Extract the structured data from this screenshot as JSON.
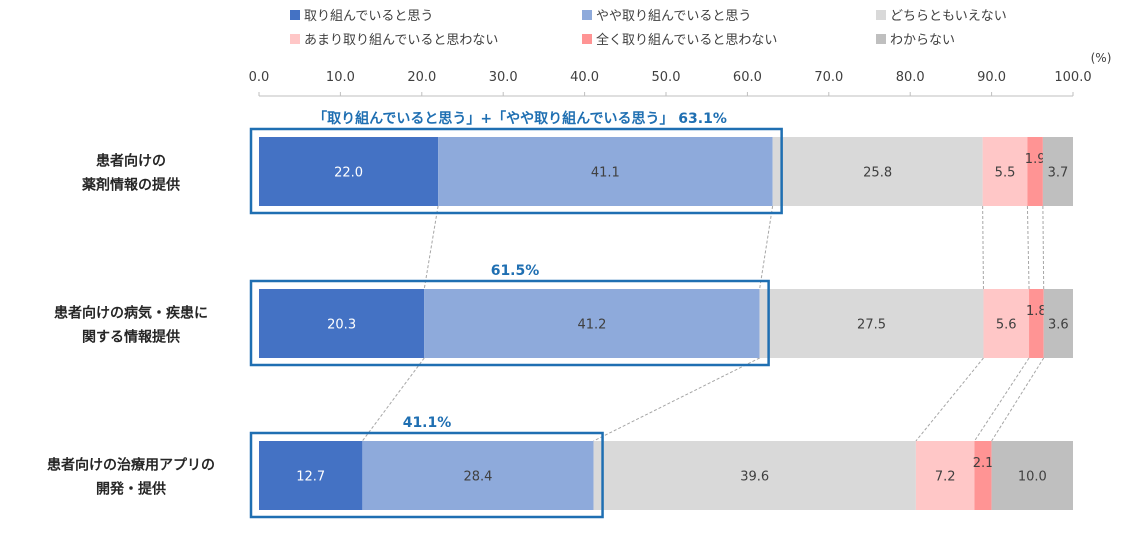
{
  "chart_data": {
    "type": "bar",
    "orientation": "horizontal",
    "stacked": true,
    "unit_label": "(%)",
    "x_ticks": [
      "0.0",
      "10.0",
      "20.0",
      "30.0",
      "40.0",
      "50.0",
      "60.0",
      "70.0",
      "80.0",
      "90.0",
      "100.0"
    ],
    "xlim": [
      0,
      100
    ],
    "legend_position": "top",
    "categories": [
      [
        "患者向けの",
        "薬剤情報の提供"
      ],
      [
        "患者向けの病気・疾患に",
        "関する情報提供"
      ],
      [
        "患者向けの治療用アプリの",
        "開発・提供"
      ]
    ],
    "series": [
      {
        "name": "取り組んでいると思う",
        "color": "#4472c4",
        "label_color": "#ffffff",
        "values": [
          22.0,
          20.3,
          12.7
        ]
      },
      {
        "name": "やや取り組んでいると思う",
        "color": "#8eaadb",
        "label_color": "#404040",
        "values": [
          41.1,
          41.2,
          28.4
        ]
      },
      {
        "name": "どちらともいえない",
        "color": "#d9d9d9",
        "label_color": "#404040",
        "values": [
          25.8,
          27.5,
          39.6
        ]
      },
      {
        "name": "あまり取り組んでいると思わない",
        "color": "#ffc7c7",
        "label_color": "#404040",
        "values": [
          5.5,
          5.6,
          7.2
        ]
      },
      {
        "name": "全く取り組んでいると思わない",
        "color": "#ff9494",
        "label_color": "#404040",
        "values": [
          1.9,
          1.8,
          2.1
        ]
      },
      {
        "name": "わからない",
        "color": "#bfbfbf",
        "label_color": "#404040",
        "values": [
          3.7,
          3.6,
          10.0
        ]
      }
    ],
    "value_labels": [
      [
        "22.0",
        "41.1",
        "25.8",
        "5.5",
        "1.9",
        "3.7"
      ],
      [
        "20.3",
        "41.2",
        "27.5",
        "5.6",
        "1.8",
        "3.6"
      ],
      [
        "12.7",
        "28.4",
        "39.6",
        "7.2",
        "2.1",
        "10.0"
      ]
    ],
    "callouts": [
      "「取り組んでいると思う」+「やや取り組んでいる思う」 63.1%",
      "61.5%",
      "41.1%"
    ],
    "callout_totals": [
      63.1,
      61.5,
      41.1
    ],
    "accent_color": "#1f6fb2",
    "connector_color": "#a6a6a6"
  }
}
